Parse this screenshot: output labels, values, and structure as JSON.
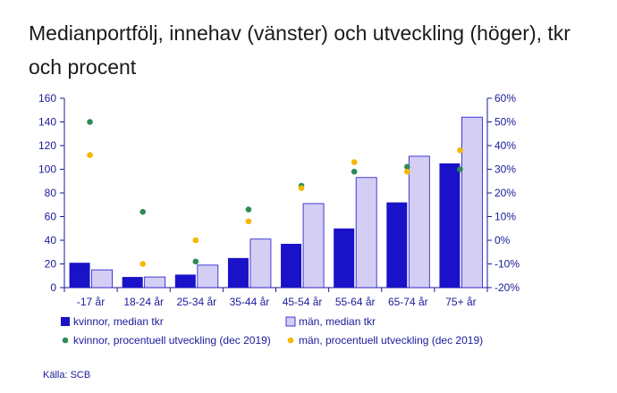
{
  "chart_data": {
    "type": "bar",
    "title": "Medianportfölj, innehav (vänster) och utveckling (höger), tkr och procent",
    "categories": [
      "-17 år",
      "18-24 år",
      "25-34 år",
      "35-44 år",
      "45-54 år",
      "55-64 år",
      "65-74 år",
      "75+ år"
    ],
    "series": [
      {
        "name": "kvinnor, median tkr",
        "kind": "bar",
        "axis": "left",
        "color": "#1a12c8",
        "values": [
          21,
          9,
          11,
          25,
          37,
          50,
          72,
          105
        ]
      },
      {
        "name": "män, median tkr",
        "kind": "bar",
        "axis": "left",
        "color": "#d4cef5",
        "values": [
          15,
          9,
          19,
          41,
          71,
          93,
          111,
          144
        ]
      },
      {
        "name": "kvinnor, procentuell utveckling (dec 2019)",
        "kind": "scatter",
        "axis": "right",
        "color": "#2e8b57",
        "values": [
          50,
          12,
          -9,
          13,
          23,
          29,
          31,
          30
        ]
      },
      {
        "name": "män, procentuell utveckling (dec 2019)",
        "kind": "scatter",
        "axis": "right",
        "color": "#f5b800",
        "values": [
          36,
          -10,
          0,
          8,
          22,
          33,
          29,
          38
        ]
      }
    ],
    "ylim_left": [
      0,
      160
    ],
    "yticks_left": [
      0,
      20,
      40,
      60,
      80,
      100,
      120,
      140,
      160
    ],
    "ylim_right": [
      -20,
      60
    ],
    "yticks_right": [
      "-20%",
      "-10%",
      "0%",
      "10%",
      "20%",
      "30%",
      "40%",
      "50%",
      "60%"
    ],
    "xlabel": "",
    "ylabel": "",
    "grid": false,
    "legend_position": "bottom"
  },
  "source": "Källa: SCB"
}
